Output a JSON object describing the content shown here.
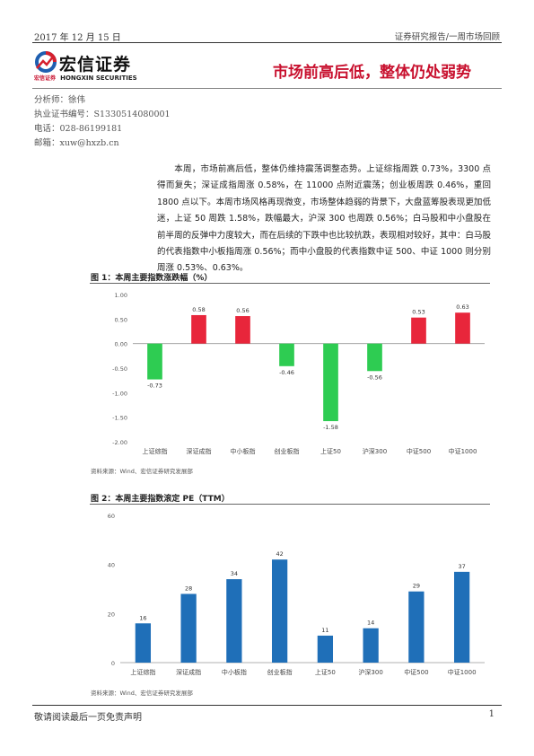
{
  "header": {
    "date": "2017 年 12 月 15 日",
    "report_type": "证券研究报告/一周市场回顾",
    "title": "市场前高后低，整体仍处弱势"
  },
  "logo": {
    "cn": "宏信证券",
    "sub_cn": "宏信证券",
    "sub_en": "HONGXIN SECURITIES"
  },
  "analyst": {
    "name": "分析师：徐伟",
    "license": "执业证书编号：S1330514080001",
    "phone": "电话：028-86199181",
    "email": "邮箱：xuw@hxzb.cn"
  },
  "summary": "本周，市场前高后低，整体仍维持震荡调整态势。上证综指周跌 0.73%，3300 点得而复失；深证成指周涨 0.58%，在 11000 点附近震荡；创业板周跌 0.46%，重回 1800 点以下。本周市场风格再现微变，市场整体趋弱的背景下，大盘蓝筹股表现更加低迷，上证 50 周跌 1.58%，跌幅最大，沪深 300 也周跌 0.56%；白马股和中小盘股在前半周的反弹中力度较大，而在后续的下跌中也比较抗跌，表现相对较好，其中：白马股的代表指数中小板指周涨 0.56%；而中小盘股的代表指数中证 500、中证 1000 则分别周涨 0.53%、0.63%。",
  "figure1": {
    "title": "图 1：本周主要指数涨跌幅（%）",
    "source": "资料来源：Wind、宏信证券研究发展部"
  },
  "figure2": {
    "title": "图 2：本周主要指数滚定 PE（TTM）",
    "source": "资料来源：Wind、宏信证券研究发展部"
  },
  "chart_data": [
    {
      "type": "bar",
      "categories": [
        "上证综指",
        "深证成指",
        "中小板指",
        "创业板指",
        "上证50",
        "沪深300",
        "中证500",
        "中证1000"
      ],
      "values": [
        -0.73,
        0.58,
        0.56,
        -0.46,
        -1.58,
        -0.56,
        0.53,
        0.63
      ],
      "value_labels": [
        "-0.73",
        "0.58",
        "0.56",
        "-0.46",
        "-1.58",
        "-0.56",
        "0.53",
        "0.63"
      ],
      "ylim": [
        -2.0,
        1.0
      ],
      "yticks": [
        "1.00",
        "0.50",
        "0.00",
        "-0.50",
        "-1.00",
        "-1.50",
        "-2.00"
      ],
      "colors": {
        "positive": "#e8263b",
        "negative": "#2ecc52"
      },
      "grid": false
    },
    {
      "type": "bar",
      "categories": [
        "上证综指",
        "深证成指",
        "中小板指",
        "创业板指",
        "上证50",
        "沪深300",
        "中证500",
        "中证1000"
      ],
      "values": [
        16,
        28,
        34,
        42,
        11,
        14,
        29,
        37
      ],
      "value_labels": [
        "16",
        "28",
        "34",
        "42",
        "11",
        "14",
        "29",
        "37"
      ],
      "ylim": [
        0,
        60
      ],
      "yticks": [
        "60",
        "40",
        "20",
        "0"
      ],
      "colors": {
        "bar": "#1f6fb8"
      },
      "grid": false
    }
  ],
  "footer": {
    "disclaimer": "敬请阅读最后一页免责声明",
    "page": "1"
  }
}
